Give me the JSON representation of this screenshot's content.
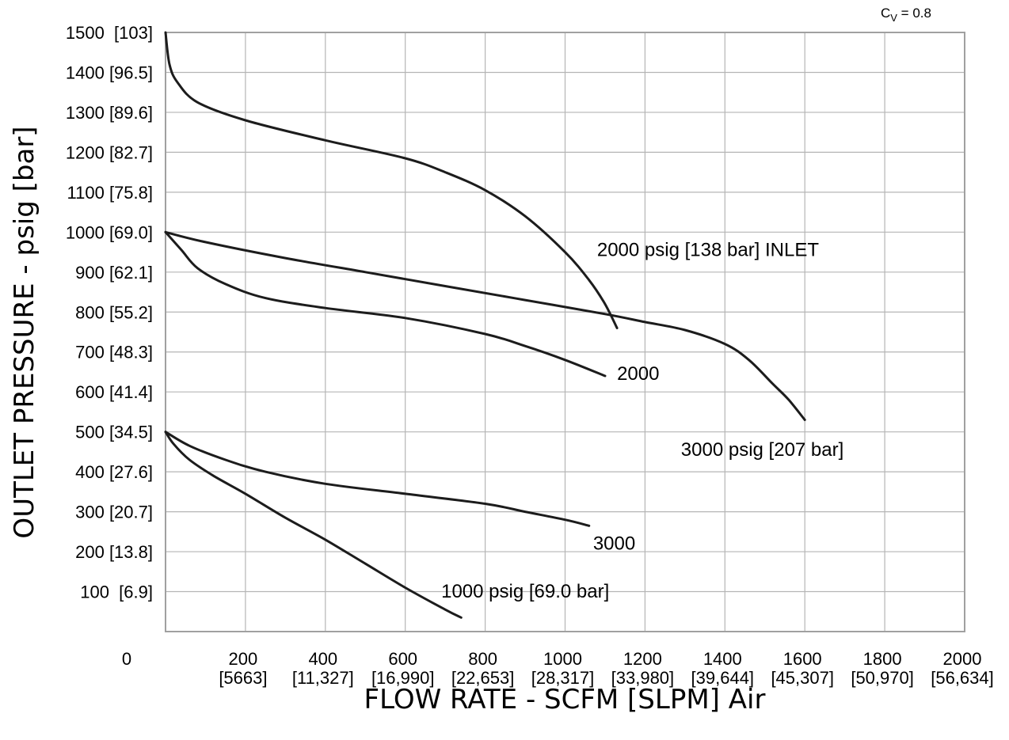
{
  "chart_data": {
    "type": "line",
    "title": "",
    "cv_label": {
      "main": "C",
      "sub": "V",
      "rest": " = 0.8"
    },
    "xlabel": "FLOW RATE - SCFM [SLPM] Air",
    "ylabel": "OUTLET PRESSURE - psig [bar]",
    "xlim": [
      0,
      2000
    ],
    "ylim": [
      0,
      1500
    ],
    "grid": true,
    "x_origin_label": "0",
    "x_ticks": [
      {
        "value": 200,
        "label": "200",
        "sub": "[5663]"
      },
      {
        "value": 400,
        "label": "400",
        "sub": "[11,327]"
      },
      {
        "value": 600,
        "label": "600",
        "sub": "[16,990]"
      },
      {
        "value": 800,
        "label": "800",
        "sub": "[22,653]"
      },
      {
        "value": 1000,
        "label": "1000",
        "sub": "[28,317]"
      },
      {
        "value": 1200,
        "label": "1200",
        "sub": "[33,980]"
      },
      {
        "value": 1400,
        "label": "1400",
        "sub": "[39,644]"
      },
      {
        "value": 1600,
        "label": "1600",
        "sub": "[45,307]"
      },
      {
        "value": 1800,
        "label": "1800",
        "sub": "[50,970]"
      },
      {
        "value": 2000,
        "label": "2000",
        "sub": "[56,634]"
      }
    ],
    "y_ticks": [
      {
        "value": 100,
        "label": "100  [6.9]"
      },
      {
        "value": 200,
        "label": "200 [13.8]"
      },
      {
        "value": 300,
        "label": "300 [20.7]"
      },
      {
        "value": 400,
        "label": "400 [27.6]"
      },
      {
        "value": 500,
        "label": "500 [34.5]"
      },
      {
        "value": 600,
        "label": "600 [41.4]"
      },
      {
        "value": 700,
        "label": "700 [48.3]"
      },
      {
        "value": 800,
        "label": "800 [55.2]"
      },
      {
        "value": 900,
        "label": "900 [62.1]"
      },
      {
        "value": 1000,
        "label": "1000 [69.0]"
      },
      {
        "value": 1100,
        "label": "1100 [75.8]"
      },
      {
        "value": 1200,
        "label": "1200 [82.7]"
      },
      {
        "value": 1300,
        "label": "1300 [89.6]"
      },
      {
        "value": 1400,
        "label": "1400 [96.5]"
      },
      {
        "value": 1500,
        "label": "1500  [103]"
      }
    ],
    "series": [
      {
        "points": [
          [
            0,
            1500
          ],
          [
            10,
            1420
          ],
          [
            30,
            1375
          ],
          [
            80,
            1325
          ],
          [
            200,
            1280
          ],
          [
            400,
            1230
          ],
          [
            600,
            1185
          ],
          [
            700,
            1150
          ],
          [
            800,
            1105
          ],
          [
            900,
            1040
          ],
          [
            1000,
            950
          ],
          [
            1060,
            880
          ],
          [
            1100,
            820
          ],
          [
            1130,
            760
          ]
        ]
      },
      {
        "points": [
          [
            0,
            1000
          ],
          [
            100,
            975
          ],
          [
            300,
            935
          ],
          [
            500,
            900
          ],
          [
            700,
            865
          ],
          [
            900,
            830
          ],
          [
            1100,
            795
          ],
          [
            1200,
            775
          ],
          [
            1300,
            755
          ],
          [
            1400,
            720
          ],
          [
            1460,
            680
          ],
          [
            1520,
            620
          ],
          [
            1560,
            580
          ],
          [
            1600,
            530
          ]
        ]
      },
      {
        "points": [
          [
            0,
            1000
          ],
          [
            40,
            955
          ],
          [
            80,
            910
          ],
          [
            150,
            870
          ],
          [
            250,
            835
          ],
          [
            400,
            810
          ],
          [
            600,
            785
          ],
          [
            800,
            745
          ],
          [
            900,
            715
          ],
          [
            1000,
            680
          ],
          [
            1100,
            640
          ]
        ]
      },
      {
        "points": [
          [
            0,
            500
          ],
          [
            60,
            465
          ],
          [
            150,
            430
          ],
          [
            250,
            400
          ],
          [
            400,
            370
          ],
          [
            600,
            345
          ],
          [
            800,
            320
          ],
          [
            900,
            300
          ],
          [
            1000,
            280
          ],
          [
            1060,
            265
          ]
        ]
      },
      {
        "points": [
          [
            0,
            500
          ],
          [
            20,
            470
          ],
          [
            60,
            430
          ],
          [
            120,
            390
          ],
          [
            200,
            345
          ],
          [
            300,
            285
          ],
          [
            400,
            230
          ],
          [
            500,
            170
          ],
          [
            600,
            110
          ],
          [
            700,
            55
          ],
          [
            740,
            35
          ]
        ]
      }
    ],
    "annotations": [
      {
        "text": "2000 psig [138 bar] INLET",
        "x": 1080,
        "y": 940,
        "anchor": "start"
      },
      {
        "text": "2000",
        "x": 1130,
        "y": 630,
        "anchor": "start"
      },
      {
        "text": "3000 psig [207 bar]",
        "x": 1290,
        "y": 440,
        "anchor": "start"
      },
      {
        "text": "3000",
        "x": 1070,
        "y": 205,
        "anchor": "start"
      },
      {
        "text": "1000 psig [69.0 bar]",
        "x": 690,
        "y": 85,
        "anchor": "start"
      }
    ]
  }
}
